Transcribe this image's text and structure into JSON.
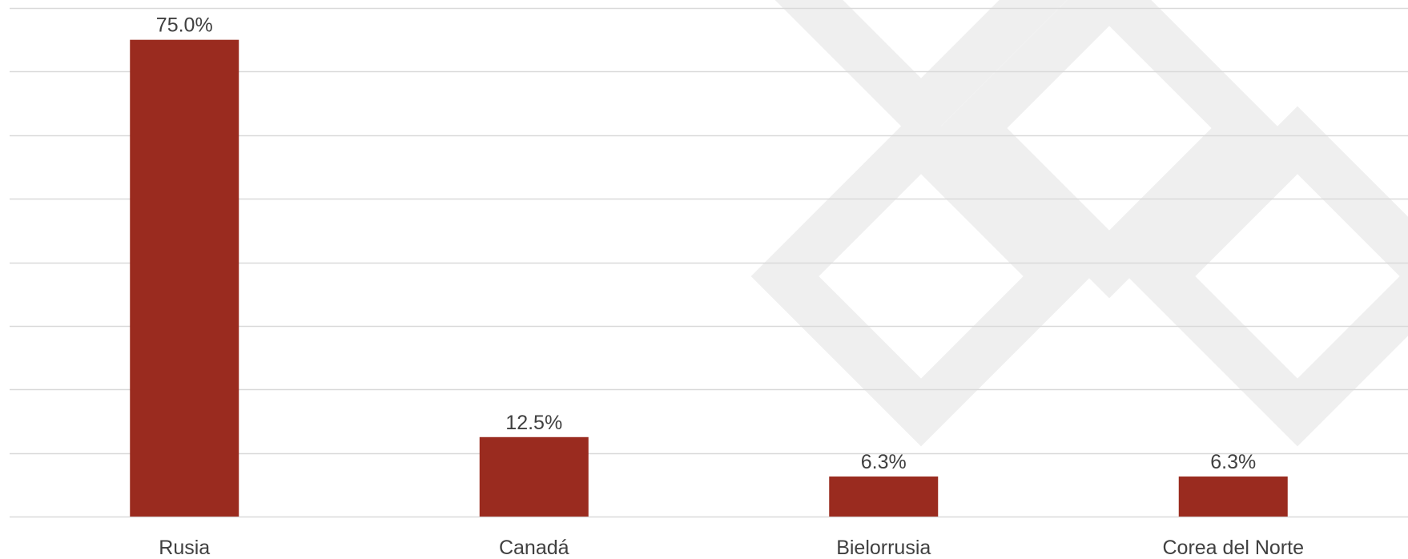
{
  "chart_data": {
    "type": "bar",
    "categories": [
      "Rusia",
      "Canadá",
      "Bielorrusia",
      "Corea del Norte"
    ],
    "values": [
      75.0,
      12.5,
      6.3,
      6.3
    ],
    "value_labels": [
      "75.0%",
      "12.5%",
      "6.3%",
      "6.3%"
    ],
    "ylim": [
      0,
      80
    ],
    "grid": true,
    "legend": "none",
    "title": "",
    "xlabel": "",
    "ylabel": ""
  },
  "colors": {
    "bar": "#9a2b1f",
    "grid": "#d9d9d9",
    "text": "#404040",
    "watermark": "#efefef"
  }
}
